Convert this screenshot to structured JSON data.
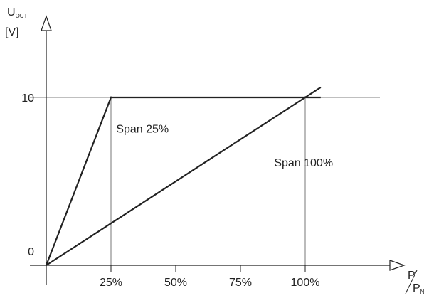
{
  "chart_data": {
    "type": "line",
    "title": "",
    "ylabel": {
      "main": "U",
      "sub": "OUT",
      "unit": "[V]"
    },
    "xlabel": {
      "num": "P",
      "den": "P",
      "den_sub": "N"
    },
    "x_ticks": [
      {
        "value": 25,
        "label": "25%"
      },
      {
        "value": 50,
        "label": "50%"
      },
      {
        "value": 75,
        "label": "75%"
      },
      {
        "value": 100,
        "label": "100%"
      }
    ],
    "y_ticks": [
      {
        "value": 0,
        "label": "0"
      },
      {
        "value": 10,
        "label": "10"
      }
    ],
    "xlim": [
      0,
      110
    ],
    "ylim": [
      -0.1,
      14
    ],
    "series": [
      {
        "name": "Span 25%",
        "points": [
          [
            0,
            0
          ],
          [
            25,
            10
          ],
          [
            106,
            10
          ]
        ]
      },
      {
        "name": "Span 100%",
        "points": [
          [
            0,
            0
          ],
          [
            100,
            10
          ],
          [
            106,
            10.6
          ]
        ]
      }
    ],
    "reference_lines": {
      "horizontal_y": 10,
      "vertical_x": [
        25,
        100
      ]
    },
    "annotations": [
      {
        "text": "Span 25%",
        "x": 27,
        "y": 7.9
      },
      {
        "text": "Span 100%",
        "x": 88,
        "y": 5.9
      }
    ],
    "colors": {
      "line": "#222222",
      "ref": "#555555"
    }
  }
}
